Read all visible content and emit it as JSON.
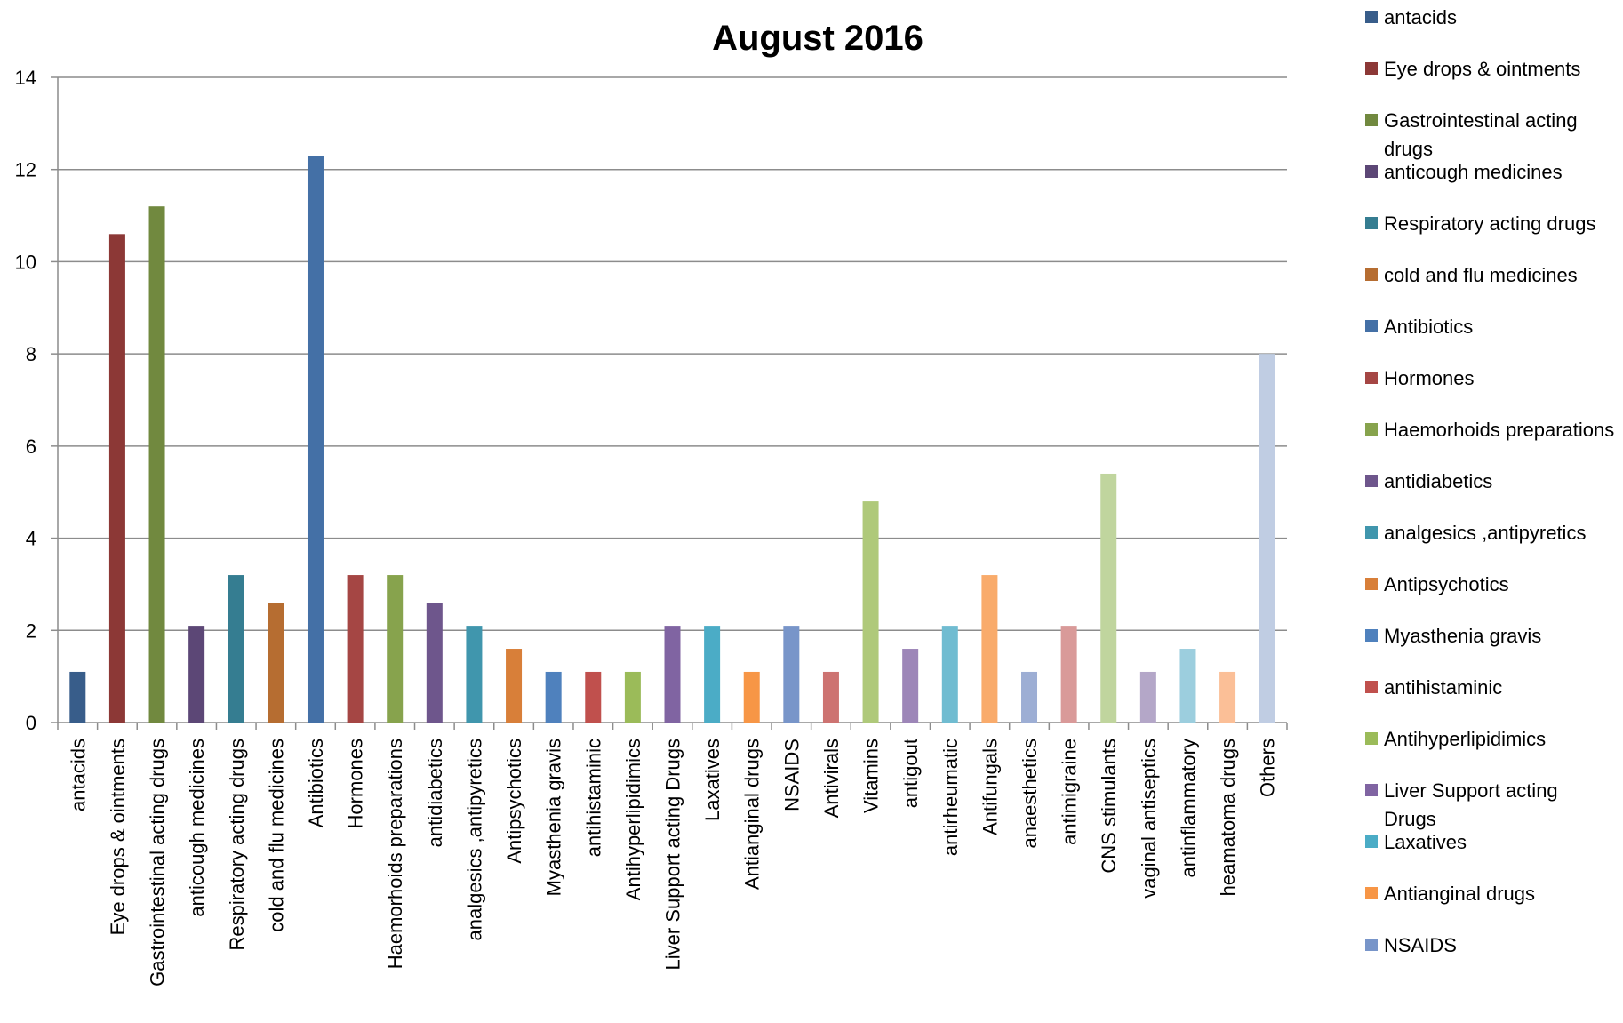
{
  "chart_data": {
    "type": "bar",
    "title": "August 2016",
    "xlabel": "",
    "ylabel": "",
    "ylim": [
      0,
      14
    ],
    "yticks": [
      0,
      2,
      4,
      6,
      8,
      10,
      12,
      14
    ],
    "grid": true,
    "legend_position": "right",
    "categories": [
      "antacids",
      "Eye drops & ointments",
      "Gastrointestinal acting drugs",
      "anticough medicines",
      "Respiratory acting drugs",
      "cold and flu medicines",
      "Antibiotics",
      "Hormones",
      "Haemorhoids preparations",
      "antidiabetics",
      "analgesics ,antipyretics",
      "Antipsychotics",
      "Myasthenia gravis",
      "antihistaminic",
      "Antihyperlipidimics",
      "Liver Support acting Drugs",
      "Laxatives",
      "Antianginal drugs",
      "NSAIDS",
      "Antivirals",
      "Vitamins",
      "antigout",
      "antirheumatic",
      "Antifungals",
      "anaesthetics",
      "antimigraine",
      "CNS stimulants",
      "vaginal antiseptics",
      "antinflammatory",
      "heamatoma drugs",
      "Others"
    ],
    "values": [
      1.1,
      10.6,
      11.2,
      2.1,
      3.2,
      2.6,
      12.3,
      3.2,
      3.2,
      2.6,
      2.1,
      1.6,
      1.1,
      1.1,
      1.1,
      2.1,
      2.1,
      1.1,
      2.1,
      1.1,
      4.8,
      1.6,
      2.1,
      3.2,
      1.1,
      2.1,
      5.4,
      1.1,
      1.6,
      1.1,
      8.0
    ],
    "colors": [
      "#385d8a",
      "#8c3836",
      "#71893f",
      "#5c4776",
      "#357d91",
      "#b66d31",
      "#4470a6",
      "#a54644",
      "#87a34d",
      "#6e568c",
      "#4096ad",
      "#d87f39",
      "#4f81bd",
      "#c0504d",
      "#9bbb59",
      "#8064a2",
      "#4bacc6",
      "#f79646",
      "#7895c9",
      "#cd7371",
      "#afc97a",
      "#9d86b8",
      "#70bcd1",
      "#f9ab6b",
      "#9daed4",
      "#d99a99",
      "#c0d59e",
      "#b4a7c8",
      "#9ccede",
      "#fbbf97",
      "#c0cde3"
    ],
    "legend": [
      "antacids",
      "Eye drops & ointments",
      "Gastrointestinal acting drugs",
      "anticough medicines",
      "Respiratory acting drugs",
      "cold and flu medicines",
      "Antibiotics",
      "Hormones",
      "Haemorhoids preparations",
      "antidiabetics",
      "analgesics ,antipyretics",
      "Antipsychotics",
      "Myasthenia gravis",
      "antihistaminic",
      "Antihyperlipidimics",
      "Liver Support acting Drugs",
      "Laxatives",
      "Antianginal drugs",
      "NSAIDS"
    ]
  }
}
